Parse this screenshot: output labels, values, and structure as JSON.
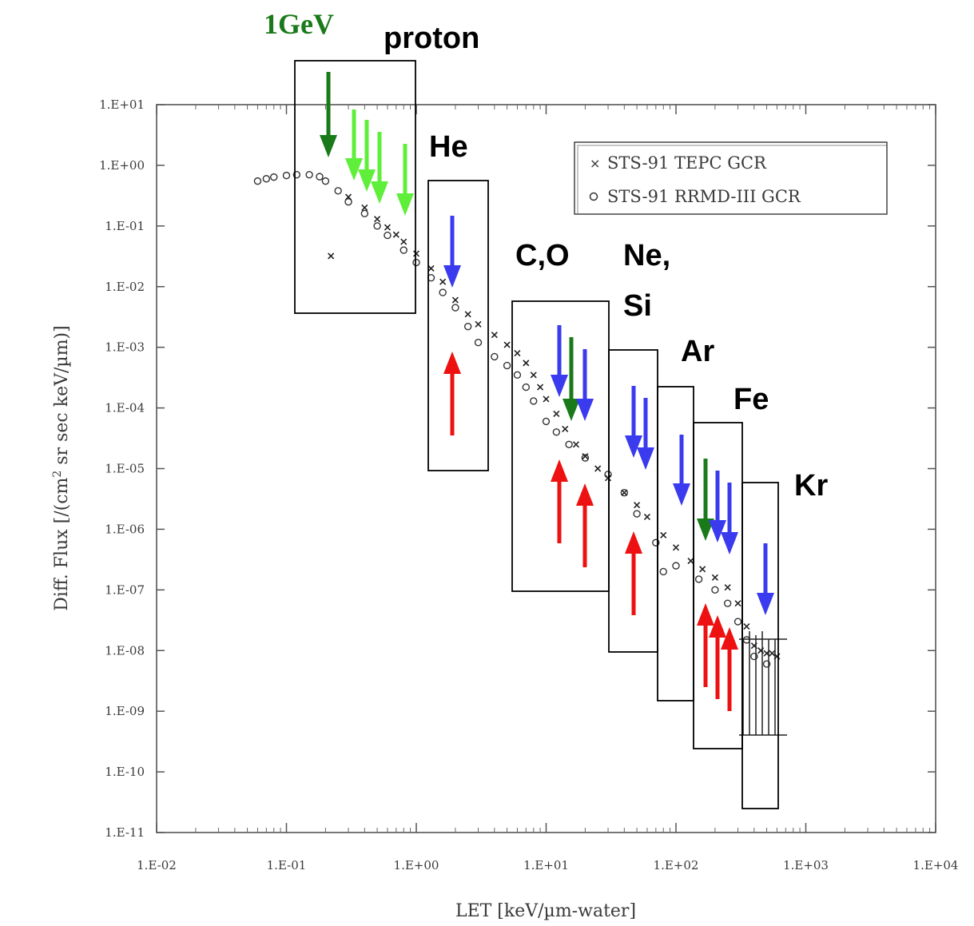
{
  "chart_data": {
    "type": "scatter",
    "xlabel": "LET [keV/µm-water]",
    "ylabel_parts": [
      "Diff. Flux [/(cm",
      "2",
      " sr sec keV/µm)]"
    ],
    "x_scale": "log",
    "y_scale": "log",
    "xlim": [
      0.01,
      10000
    ],
    "ylim": [
      1e-11,
      10
    ],
    "x_ticks": [
      "1.E-02",
      "1.E-01",
      "1.E+00",
      "1.E+01",
      "1.E+02",
      "1.E+03",
      "1.E+04"
    ],
    "y_ticks": [
      "1.E+01",
      "1.E+00",
      "1.E-01",
      "1.E-02",
      "1.E-03",
      "1.E-04",
      "1.E-05",
      "1.E-06",
      "1.E-07",
      "1.E-08",
      "1.E-09",
      "1.E-10",
      "1.E-11"
    ],
    "legend_position": "top-right",
    "series": [
      {
        "name": "STS-91 TEPC GCR",
        "marker": "x",
        "points": [
          [
            0.22,
            0.032
          ],
          [
            0.3,
            0.3
          ],
          [
            0.4,
            0.2
          ],
          [
            0.5,
            0.13
          ],
          [
            0.6,
            0.095
          ],
          [
            0.7,
            0.072
          ],
          [
            0.8,
            0.055
          ],
          [
            1.0,
            0.035
          ],
          [
            1.3,
            0.02
          ],
          [
            1.6,
            0.012
          ],
          [
            2.0,
            0.006
          ],
          [
            2.5,
            0.0035
          ],
          [
            3.0,
            0.0024
          ],
          [
            4.0,
            0.0016
          ],
          [
            5.0,
            0.0011
          ],
          [
            6.0,
            0.0008
          ],
          [
            7.0,
            0.00055
          ],
          [
            8.0,
            0.00035
          ],
          [
            9.0,
            0.00022
          ],
          [
            10.0,
            0.00014
          ],
          [
            12.0,
            8e-05
          ],
          [
            14.0,
            4.5e-05
          ],
          [
            17.0,
            2.5e-05
          ],
          [
            20.0,
            1.6e-05
          ],
          [
            25.0,
            1e-05
          ],
          [
            30.0,
            7e-06
          ],
          [
            40.0,
            4e-06
          ],
          [
            50.0,
            2.5e-06
          ],
          [
            60.0,
            1.6e-06
          ],
          [
            80.0,
            8e-07
          ],
          [
            100.0,
            5e-07
          ],
          [
            130.0,
            3e-07
          ],
          [
            160.0,
            2.2e-07
          ],
          [
            200.0,
            1.6e-07
          ],
          [
            250.0,
            1.1e-07
          ],
          [
            300.0,
            6e-08
          ],
          [
            350.0,
            2.5e-08
          ],
          [
            400.0,
            1.2e-08
          ],
          [
            450.0,
            1e-08
          ],
          [
            500.0,
            9e-09
          ],
          [
            550.0,
            9e-09
          ],
          [
            600.0,
            8e-09
          ]
        ]
      },
      {
        "name": "STS-91 RRMD-III GCR",
        "marker": "o",
        "points": [
          [
            0.06,
            0.55
          ],
          [
            0.07,
            0.6
          ],
          [
            0.08,
            0.64
          ],
          [
            0.1,
            0.68
          ],
          [
            0.12,
            0.7
          ],
          [
            0.15,
            0.7
          ],
          [
            0.18,
            0.65
          ],
          [
            0.2,
            0.55
          ],
          [
            0.25,
            0.38
          ],
          [
            0.3,
            0.25
          ],
          [
            0.4,
            0.16
          ],
          [
            0.5,
            0.1
          ],
          [
            0.6,
            0.07
          ],
          [
            0.8,
            0.04
          ],
          [
            1.0,
            0.025
          ],
          [
            1.3,
            0.014
          ],
          [
            1.6,
            0.008
          ],
          [
            2.0,
            0.0045
          ],
          [
            2.5,
            0.0022
          ],
          [
            3.0,
            0.0012
          ],
          [
            4.0,
            0.0007
          ],
          [
            5.0,
            0.0005
          ],
          [
            6.0,
            0.00035
          ],
          [
            7.0,
            0.00022
          ],
          [
            8.0,
            0.00013
          ],
          [
            10.0,
            6e-05
          ],
          [
            12.0,
            4e-05
          ],
          [
            15.0,
            2.5e-05
          ],
          [
            20.0,
            1.5e-05
          ],
          [
            30.0,
            8e-06
          ],
          [
            40.0,
            4e-06
          ],
          [
            50.0,
            1.8e-06
          ],
          [
            70.0,
            6e-07
          ],
          [
            80.0,
            2e-07
          ],
          [
            100.0,
            2.5e-07
          ],
          [
            150.0,
            1.5e-07
          ],
          [
            200.0,
            1e-07
          ],
          [
            250.0,
            6e-08
          ],
          [
            300.0,
            3e-08
          ],
          [
            350.0,
            1.5e-08
          ],
          [
            400.0,
            8e-09
          ],
          [
            500.0,
            6e-09
          ]
        ]
      }
    ],
    "ion_labels": [
      {
        "text": "proton",
        "color": "#000000"
      },
      {
        "text": "He",
        "color": "#000000"
      },
      {
        "text": "C,O",
        "color": "#000000"
      },
      {
        "text": "Ne,",
        "color": "#000000"
      },
      {
        "text": "Si",
        "color": "#000000"
      },
      {
        "text": "Ar",
        "color": "#000000"
      },
      {
        "text": "Fe",
        "color": "#000000"
      },
      {
        "text": "Kr",
        "color": "#000000"
      }
    ],
    "energy_label": {
      "text": "1GeV",
      "color": "#1a7a1a"
    },
    "arrow_colors": {
      "dark_green": "#1a7a1a",
      "light_green": "#5fef3a",
      "blue": "#3a3aee",
      "red": "#ee1111"
    }
  }
}
